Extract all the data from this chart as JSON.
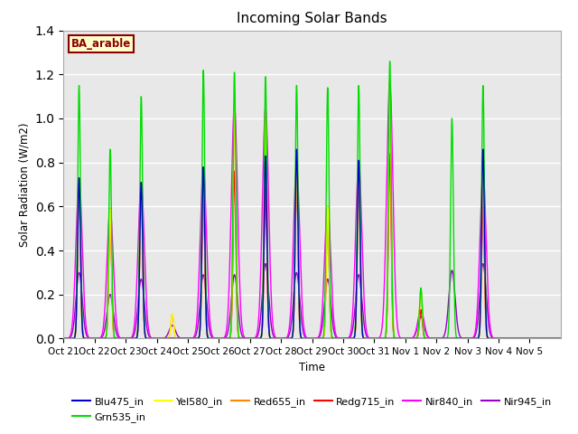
{
  "title": "Incoming Solar Bands",
  "xlabel": "Time",
  "ylabel": "Solar Radiation (W/m2)",
  "ylim": [
    0,
    1.4
  ],
  "background_color": "#e8e8e8",
  "legend_label": "BA_arable",
  "series": {
    "Blu475_in": {
      "color": "#0000cc",
      "lw": 1.0
    },
    "Grn535_in": {
      "color": "#00dd00",
      "lw": 1.0
    },
    "Yel580_in": {
      "color": "#ffff00",
      "lw": 1.0
    },
    "Red655_in": {
      "color": "#ff8800",
      "lw": 1.0
    },
    "Redg715_in": {
      "color": "#ff0000",
      "lw": 1.0
    },
    "Nir840_in": {
      "color": "#ff00ff",
      "lw": 1.0
    },
    "Nir945_in": {
      "color": "#9900cc",
      "lw": 1.0
    }
  },
  "days": [
    "Oct 21",
    "Oct 22",
    "Oct 23",
    "Oct 24",
    "Oct 25",
    "Oct 26",
    "Oct 27",
    "Oct 28",
    "Oct 29",
    "Oct 30",
    "Oct 31",
    "Nov 1",
    "Nov 2",
    "Nov 3",
    "Nov 4",
    "Nov 5"
  ],
  "day_peaks": [
    {
      "blu": 0.73,
      "grn": 1.15,
      "yel": 0.72,
      "red": 0.73,
      "redg": 0.72,
      "nir840": 0.73,
      "nir945": 0.3
    },
    {
      "blu": 0.0,
      "grn": 0.86,
      "yel": 0.59,
      "red": 0.59,
      "redg": 0.59,
      "nir840": 0.59,
      "nir945": 0.2
    },
    {
      "blu": 0.71,
      "grn": 1.1,
      "yel": 0.71,
      "red": 0.71,
      "redg": 0.71,
      "nir840": 0.71,
      "nir945": 0.27
    },
    {
      "blu": 0.0,
      "grn": 0.0,
      "yel": 0.11,
      "red": 0.11,
      "redg": 0.0,
      "nir840": 0.0,
      "nir945": 0.06
    },
    {
      "blu": 0.78,
      "grn": 1.22,
      "yel": 0.78,
      "red": 0.7,
      "redg": 0.68,
      "nir840": 0.78,
      "nir945": 0.29
    },
    {
      "blu": 0.0,
      "grn": 1.21,
      "yel": 1.06,
      "red": 1.06,
      "redg": 0.76,
      "nir840": 1.06,
      "nir945": 0.29
    },
    {
      "blu": 0.83,
      "grn": 1.19,
      "yel": 1.05,
      "red": 1.05,
      "redg": 0.69,
      "nir840": 1.05,
      "nir945": 0.34
    },
    {
      "blu": 0.86,
      "grn": 1.15,
      "yel": 0.79,
      "red": 0.77,
      "redg": 0.75,
      "nir840": 0.79,
      "nir945": 0.3
    },
    {
      "blu": 0.0,
      "grn": 1.14,
      "yel": 0.6,
      "red": 0.6,
      "redg": 0.6,
      "nir840": 0.6,
      "nir945": 0.27
    },
    {
      "blu": 0.81,
      "grn": 1.15,
      "yel": 0.8,
      "red": 0.8,
      "redg": 0.75,
      "nir840": 0.8,
      "nir945": 0.29
    },
    {
      "blu": 0.0,
      "grn": 1.26,
      "yel": 1.17,
      "red": 1.05,
      "redg": 0.84,
      "nir840": 1.17,
      "nir945": 0.0
    },
    {
      "blu": 0.0,
      "grn": 0.23,
      "yel": 0.22,
      "red": 0.22,
      "redg": 0.13,
      "nir840": 0.13,
      "nir945": 0.1
    },
    {
      "blu": 0.0,
      "grn": 1.0,
      "yel": 0.0,
      "red": 0.0,
      "redg": 0.0,
      "nir840": 0.0,
      "nir945": 0.31
    },
    {
      "blu": 0.86,
      "grn": 1.15,
      "yel": 0.75,
      "red": 0.75,
      "redg": 0.6,
      "nir840": 0.75,
      "nir945": 0.34
    },
    {
      "blu": 0.0,
      "grn": 0.0,
      "yel": 0.0,
      "red": 0.0,
      "redg": 0.0,
      "nir840": 0.0,
      "nir945": 0.0
    },
    {
      "blu": 0.0,
      "grn": 0.0,
      "yel": 0.0,
      "red": 0.0,
      "redg": 0.0,
      "nir840": 0.0,
      "nir945": 0.0
    }
  ],
  "sigma_narrow": 0.045,
  "sigma_wide": 0.1,
  "pts_per_day": 300
}
